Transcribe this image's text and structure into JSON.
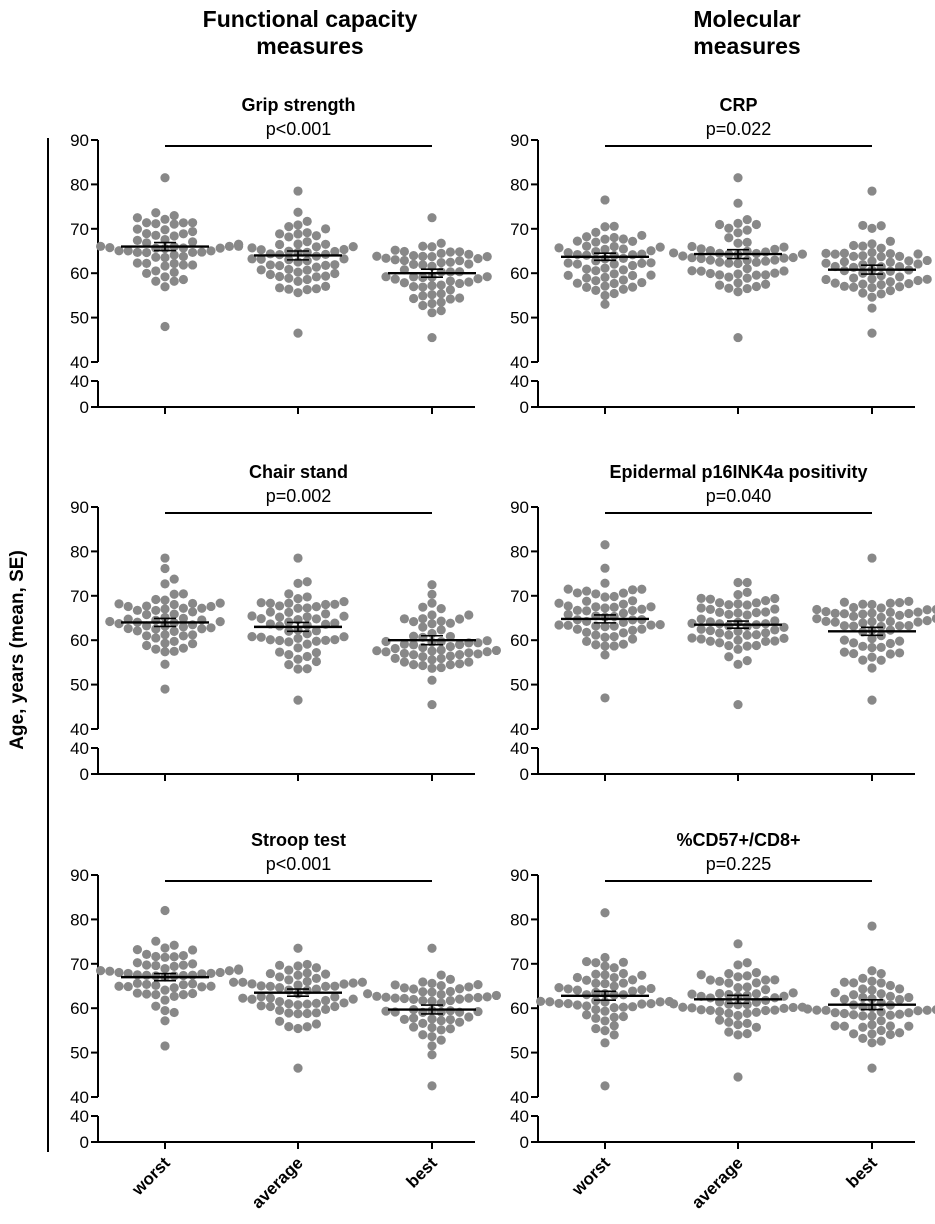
{
  "column_headers": {
    "left": [
      "Functional capacity",
      "measures"
    ],
    "right": [
      "Molecular",
      "measures"
    ]
  },
  "ylabel": "Age, years (mean, SE)",
  "colors": {
    "dots": "#888888",
    "lines": "#000000"
  },
  "chart_data": [
    {
      "type": "scatter",
      "title": "Grip strength",
      "pvalue": "p<0.001",
      "categories": [
        "worst",
        "average",
        "best"
      ],
      "ylabel": "Age, years (mean, SE)",
      "ylim": [
        40,
        90
      ],
      "yticks": [
        40,
        50,
        60,
        70,
        80,
        90
      ],
      "ybreak_ticks": [
        0,
        40
      ],
      "means": [
        66,
        64,
        60
      ],
      "se": [
        0.9,
        1.0,
        0.9
      ],
      "min": [
        48,
        46.5,
        45.5
      ],
      "max": [
        81.5,
        78.5,
        72.5
      ],
      "n": 58
    },
    {
      "type": "scatter",
      "title": "CRP",
      "pvalue": "p=0.022",
      "categories": [
        "worst",
        "average",
        "best"
      ],
      "ylabel": "Age, years (mean, SE)",
      "ylim": [
        40,
        90
      ],
      "yticks": [
        40,
        50,
        60,
        70,
        80,
        90
      ],
      "ybreak_ticks": [
        0,
        40
      ],
      "means": [
        63.7,
        64.3,
        60.8
      ],
      "se": [
        0.8,
        1.0,
        1.0
      ],
      "min": [
        53,
        45.5,
        46.5
      ],
      "max": [
        76.5,
        81.5,
        78.5
      ],
      "n": 58
    },
    {
      "type": "scatter",
      "title": "Chair stand",
      "pvalue": "p=0.002",
      "categories": [
        "worst",
        "average",
        "best"
      ],
      "ylabel": "Age, years (mean, SE)",
      "ylim": [
        40,
        90
      ],
      "yticks": [
        40,
        50,
        60,
        70,
        80,
        90
      ],
      "ybreak_ticks": [
        0,
        40
      ],
      "means": [
        64,
        63,
        60
      ],
      "se": [
        0.9,
        1.0,
        1.0
      ],
      "min": [
        49,
        46.5,
        45.5
      ],
      "max": [
        78.5,
        78.5,
        72.5
      ],
      "n": 58
    },
    {
      "type": "scatter",
      "title": "Epidermal p16INK4a positivity",
      "pvalue": "p=0.040",
      "categories": [
        "worst",
        "average",
        "best"
      ],
      "ylabel": "Age, years (mean, SE)",
      "ylim": [
        40,
        90
      ],
      "yticks": [
        40,
        50,
        60,
        70,
        80,
        90
      ],
      "ybreak_ticks": [
        0,
        40
      ],
      "means": [
        64.8,
        63.5,
        62
      ],
      "se": [
        0.9,
        0.8,
        0.9
      ],
      "min": [
        47,
        45.5,
        46.5
      ],
      "max": [
        81.5,
        73,
        78.5
      ],
      "n": 58
    },
    {
      "type": "scatter",
      "title": "Stroop test",
      "pvalue": "p<0.001",
      "categories": [
        "worst",
        "average",
        "best"
      ],
      "ylabel": "Age, years (mean, SE)",
      "ylim": [
        40,
        90
      ],
      "yticks": [
        40,
        50,
        60,
        70,
        80,
        90
      ],
      "ybreak_ticks": [
        0,
        40
      ],
      "means": [
        67,
        63.5,
        59.7
      ],
      "se": [
        0.8,
        0.8,
        1.0
      ],
      "min": [
        51.5,
        46.5,
        42.5
      ],
      "max": [
        82,
        73.5,
        73.5
      ],
      "n": 58
    },
    {
      "type": "scatter",
      "title": "%CD57+/CD8+",
      "pvalue": "p=0.225",
      "categories": [
        "worst",
        "average",
        "best"
      ],
      "ylabel": "Age, years (mean, SE)",
      "ylim": [
        40,
        90
      ],
      "yticks": [
        40,
        50,
        60,
        70,
        80,
        90
      ],
      "ybreak_ticks": [
        0,
        40
      ],
      "means": [
        62.8,
        62,
        60.8
      ],
      "se": [
        1.0,
        0.9,
        1.1
      ],
      "min": [
        42.5,
        44.5,
        46.5
      ],
      "max": [
        81.5,
        74.5,
        78.5
      ],
      "n": 58
    }
  ]
}
